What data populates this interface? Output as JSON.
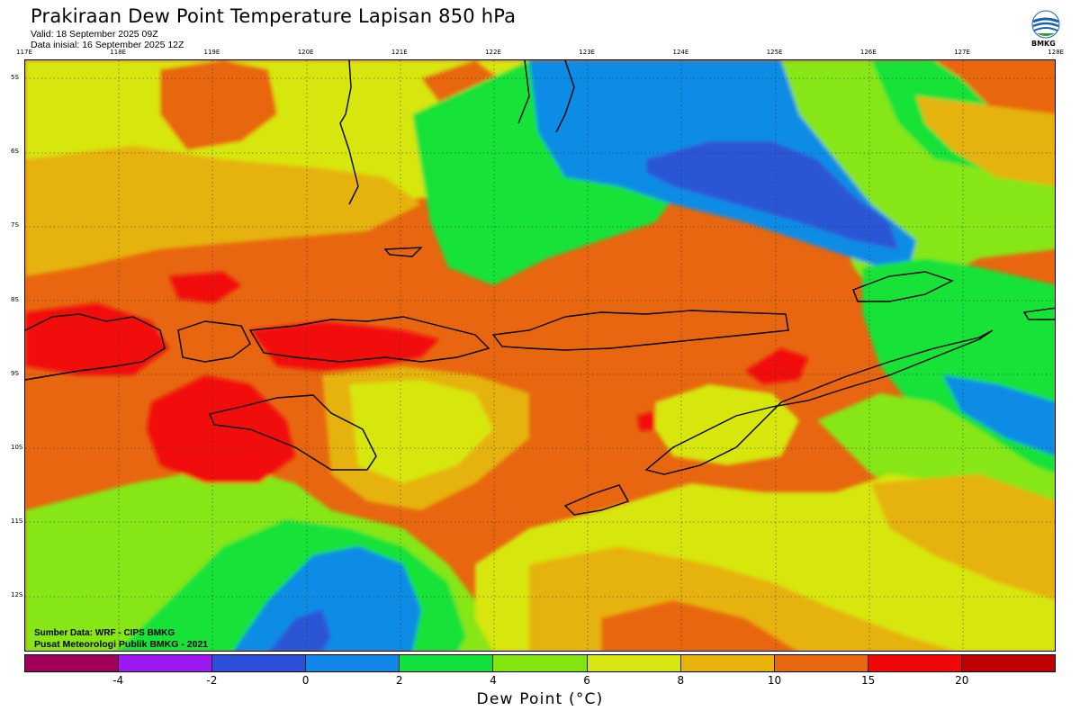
{
  "header": {
    "title": "Prakiraan Dew Point Temperature Lapisan 850 hPa",
    "valid": "Valid: 18 September 2025 09Z",
    "initial": "Data inisial: 16 September 2025 12Z",
    "logo_text": "BMKG"
  },
  "map": {
    "lon_labels": [
      "117E",
      "118E",
      "119E",
      "120E",
      "121E",
      "122E",
      "123E",
      "124E",
      "125E",
      "126E",
      "127E",
      "128E"
    ],
    "lat_labels": [
      "5S",
      "6S",
      "7S",
      "8S",
      "9S",
      "10S",
      "11S",
      "12S"
    ],
    "source_line1": "Sumber Data: WRF - CIPS BMKG",
    "source_line2": "Pusat Meteorologi Publik BMKG - 2021",
    "field_colors": {
      "red": "#f20a0a",
      "orange": "#e8660f",
      "gold": "#e6b20b",
      "yellow": "#d7e610",
      "lightgreen": "#86e612",
      "green": "#16e238",
      "blue": "#0f8ce6",
      "darkblue": "#2c56d6"
    }
  },
  "colorbar": {
    "colors": [
      "#a0005a",
      "#9c19f0",
      "#2d4ed9",
      "#1188e8",
      "#12e03c",
      "#84e610",
      "#d7e611",
      "#e8b40b",
      "#e8680f",
      "#f00808",
      "#bf0000"
    ],
    "ticks": [
      "-4",
      "-2",
      "0",
      "2",
      "4",
      "6",
      "8",
      "10",
      "15",
      "20"
    ],
    "label": "Dew Point (°C)"
  }
}
